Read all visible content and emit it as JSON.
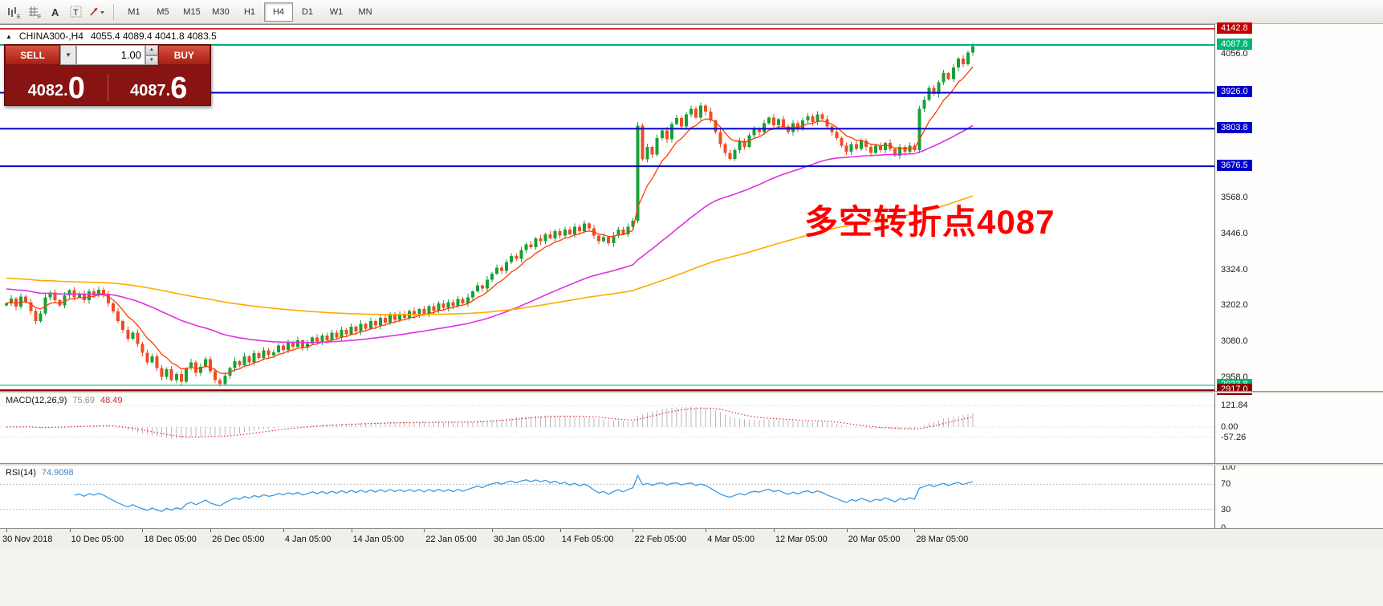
{
  "toolbar": {
    "tool_icons": [
      "chart-objects-icon",
      "grid-icon",
      "text-label-icon",
      "text-tool-icon",
      "draw-tools-dropdown-icon"
    ],
    "timeframes": [
      "M1",
      "M5",
      "M15",
      "M30",
      "H1",
      "H4",
      "D1",
      "W1",
      "MN"
    ],
    "active_timeframe": "H4"
  },
  "icons": {
    "tick_direction": "▲",
    "dropdown_caret": "▼",
    "spin_up": "▲",
    "spin_down": "▼"
  },
  "chart": {
    "symbol_period": "CHINA300-,H4",
    "ohlc": "4055.4 4089.4 4041.8 4083.5"
  },
  "trade_panel": {
    "sell_label": "SELL",
    "buy_label": "BUY",
    "volume": "1.00",
    "sell_price": "4082.0",
    "buy_price": "4087.6",
    "sell_price_main": "4082.",
    "sell_price_big": "0",
    "buy_price_main": "4087.",
    "buy_price_big": "6"
  },
  "annotation": {
    "text": "多空转折点4087",
    "color": "#ff0000"
  },
  "macd_panel": {
    "title": "MACD(12,26,9)",
    "value_main": "75.69",
    "value_signal": "48.49"
  },
  "rsi_panel": {
    "title": "RSI(14)",
    "value": "74.9098"
  },
  "price_axis": {
    "plain_labels": [
      {
        "text": "4056.0",
        "price": 4056.0
      },
      {
        "text": "3568.0",
        "price": 3568.0
      },
      {
        "text": "3446.0",
        "price": 3446.0
      },
      {
        "text": "3324.0",
        "price": 3324.0
      },
      {
        "text": "3202.0",
        "price": 3202.0
      },
      {
        "text": "3080.0",
        "price": 3080.0
      },
      {
        "text": "2958.0",
        "price": 2958.0
      }
    ],
    "badges": [
      {
        "text": "4142.8",
        "price": 4142.8,
        "color": "#c40000"
      },
      {
        "text": "4087.8",
        "price": 4087.8,
        "color": "#00b573"
      },
      {
        "text": "3926.0",
        "price": 3926.0,
        "color": "#0000cc"
      },
      {
        "text": "3803.8",
        "price": 3803.8,
        "color": "#0000cc"
      },
      {
        "text": "3676.5",
        "price": 3676.5,
        "color": "#0000cc"
      },
      {
        "text": "2933.8",
        "price": 2933.8,
        "color": "#00b573"
      },
      {
        "text": "2917.0",
        "price": 2917.0,
        "color": "#8b0000"
      }
    ]
  },
  "chart_data": {
    "type": "candlestick",
    "symbol": "CHINA300-",
    "timeframe": "H4",
    "current": {
      "open": 4055.4,
      "high": 4089.4,
      "low": 4041.8,
      "close": 4083.5,
      "bid": 4082.0,
      "ask": 4087.6,
      "last": 4087.8
    },
    "visible_price_range": [
      2917.0,
      4142.8
    ],
    "support_resistance": [
      3926.0,
      3803.8,
      3676.5
    ],
    "colors": {
      "up": "#18a038",
      "down": "#ee4d25",
      "ma_fast": "#ff3c00",
      "ma_mid": "#e032e0",
      "ma_slow": "#ffaa00",
      "sr_line": "#0000cc",
      "price_line": "#00b573",
      "top_line": "#c40000",
      "bottom_line": "#8b0000",
      "macd_hist": "#b9b9b9",
      "macd_signal": "#e03030",
      "rsi_line": "#3d9ae0"
    },
    "closes": [
      3212,
      3228,
      3200,
      3234,
      3216,
      3185,
      3152,
      3178,
      3232,
      3248,
      3222,
      3204,
      3238,
      3256,
      3232,
      3244,
      3222,
      3252,
      3238,
      3258,
      3242,
      3212,
      3184,
      3152,
      3122,
      3092,
      3112,
      3074,
      3044,
      3012,
      3032,
      2992,
      2962,
      2988,
      2952,
      2972,
      2946,
      2992,
      3012,
      2976,
      2996,
      3022,
      2982,
      2952,
      2938,
      2966,
      2992,
      3016,
      3002,
      3032,
      3012,
      3042,
      3026,
      3052,
      3036,
      3046,
      3068,
      3054,
      3078,
      3064,
      3086,
      3062,
      3076,
      3096,
      3082,
      3102,
      3086,
      3112,
      3096,
      3122,
      3106,
      3132,
      3116,
      3142,
      3126,
      3152,
      3136,
      3162,
      3146,
      3172,
      3156,
      3176,
      3162,
      3186,
      3172,
      3192,
      3176,
      3202,
      3186,
      3212,
      3196,
      3216,
      3202,
      3226,
      3212,
      3232,
      3252,
      3272,
      3262,
      3292,
      3312,
      3332,
      3322,
      3352,
      3372,
      3362,
      3392,
      3412,
      3402,
      3432,
      3422,
      3446,
      3432,
      3456,
      3442,
      3462,
      3446,
      3472,
      3456,
      3482,
      3466,
      3442,
      3422,
      3436,
      3416,
      3442,
      3462,
      3446,
      3472,
      3492,
      3815,
      3700,
      3742,
      3716,
      3772,
      3798,
      3768,
      3820,
      3840,
      3812,
      3852,
      3872,
      3842,
      3882,
      3862,
      3832,
      3792,
      3752,
      3722,
      3702,
      3732,
      3762,
      3742,
      3782,
      3802,
      3792,
      3822,
      3842,
      3816,
      3836,
      3812,
      3792,
      3822,
      3802,
      3832,
      3846,
      3826,
      3852,
      3836,
      3812,
      3792,
      3772,
      3746,
      3726,
      3752,
      3736,
      3762,
      3742,
      3722,
      3746,
      3732,
      3756,
      3736,
      3712,
      3742,
      3726,
      3746,
      3732,
      3872,
      3902,
      3942,
      3922,
      3962,
      3992,
      3972,
      4012,
      4042,
      4022,
      4062,
      4084
    ],
    "moving_averages": [
      {
        "period": 8,
        "seed": null,
        "color_key": "ma_fast",
        "width": 1.3
      },
      {
        "period": 55,
        "seed": 3262,
        "color_key": "ma_mid",
        "width": 1.6
      },
      {
        "period": 170,
        "seed": 3298,
        "color_key": "ma_slow",
        "width": 1.6
      }
    ],
    "hlines": [
      {
        "price": 4142.8,
        "color_key": "top_line",
        "width": 1.5
      },
      {
        "price": 4087.8,
        "color_key": "price_line",
        "width": 2
      },
      {
        "price": 3926.0,
        "color_key": "sr_line",
        "width": 2
      },
      {
        "price": 3803.8,
        "color_key": "sr_line",
        "width": 2
      },
      {
        "price": 3676.5,
        "color_key": "sr_line",
        "width": 2
      },
      {
        "price": 2933.8,
        "color_key": "price_line",
        "width": 1
      },
      {
        "price": 2917.0,
        "color_key": "bottom_line",
        "width": 2
      }
    ],
    "indicators": {
      "macd": {
        "params": [
          12,
          26,
          9
        ],
        "current": [
          75.69,
          48.49
        ],
        "scale_labels": [
          121.84,
          0.0,
          -57.26
        ]
      },
      "rsi": {
        "period": 14,
        "current": 74.9098,
        "levels": [
          100,
          70,
          30,
          0
        ],
        "dashed_levels": [
          70,
          30
        ]
      }
    },
    "time_axis": [
      {
        "label": "30 Nov 2018",
        "index": 0
      },
      {
        "label": "10 Dec 05:00",
        "index": 13
      },
      {
        "label": "18 Dec 05:00",
        "index": 28
      },
      {
        "label": "26 Dec 05:00",
        "index": 42
      },
      {
        "label": "4 Jan 05:00",
        "index": 57
      },
      {
        "label": "14 Jan 05:00",
        "index": 71
      },
      {
        "label": "22 Jan 05:00",
        "index": 86
      },
      {
        "label": "30 Jan 05:00",
        "index": 100
      },
      {
        "label": "14 Feb 05:00",
        "index": 114
      },
      {
        "label": "22 Feb 05:00",
        "index": 129
      },
      {
        "label": "4 Mar 05:00",
        "index": 144
      },
      {
        "label": "12 Mar 05:00",
        "index": 158
      },
      {
        "label": "20 Mar 05:00",
        "index": 173
      },
      {
        "label": "28 Mar 05:00",
        "index": 187
      }
    ]
  }
}
